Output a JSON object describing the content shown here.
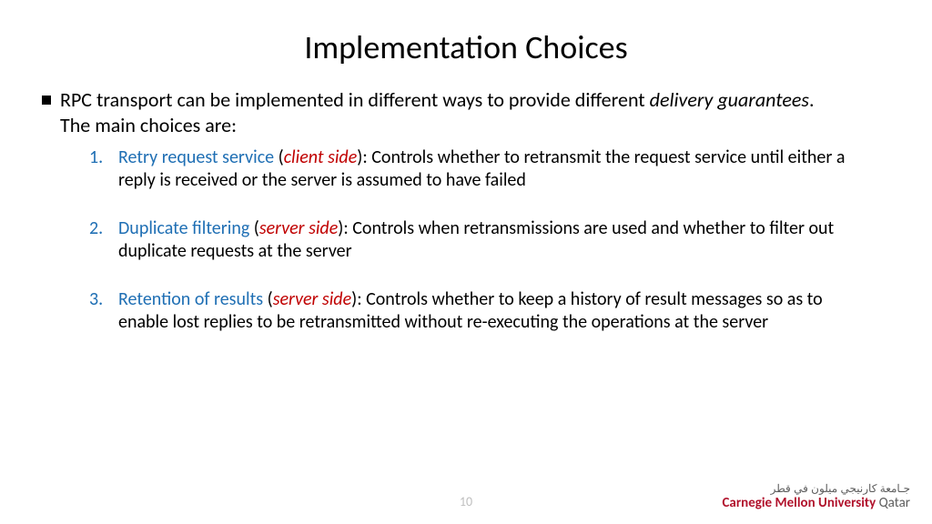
{
  "title": "Implementation Choices",
  "intro": {
    "prefix": "RPC transport can be implemented in different ways to provide different ",
    "italic": "delivery guarantees",
    "suffix": ". The main choices are:"
  },
  "items": [
    {
      "num": "1.",
      "name": "Retry request service",
      "side_open": " (",
      "side": "client side",
      "side_close": ")",
      "rest": ": Controls whether to retransmit the request service until either a reply is received or the server is assumed to have failed"
    },
    {
      "num": "2.",
      "name": "Duplicate filtering",
      "side_open": " (",
      "side": "server side",
      "side_close": ")",
      "rest": ": Controls when retransmissions are used and whether to filter out duplicate requests at the server"
    },
    {
      "num": "3.",
      "name": "Retention of results",
      "side_open": " (",
      "side": "server side",
      "side_close": ")",
      "rest": ": Controls whether to keep a history of result messages so as to enable lost replies to be retransmitted without re-executing the operations at the server"
    }
  ],
  "page_number": "10",
  "logo": {
    "arabic": "جـامعة كارنيجي ميلون في قطر",
    "cmu": "Carnegie Mellon University",
    "qatar": " Qatar"
  },
  "colors": {
    "blue": "#1f6fb4",
    "red": "#c00000",
    "pagenum": "#bfbfbf",
    "cmu_red": "#b1132d",
    "grey": "#5d5d5d"
  }
}
